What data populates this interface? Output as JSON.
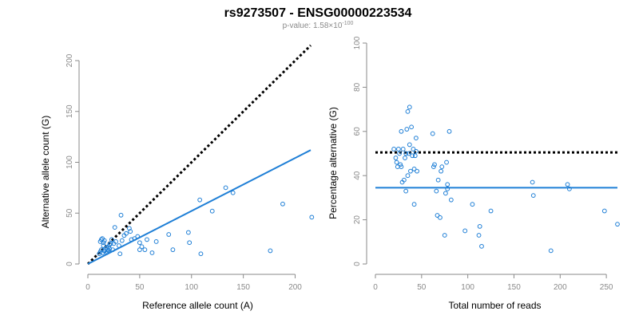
{
  "title": "rs9273507 - ENSG00000223534",
  "subtitle": {
    "prefix": "p-value: 1.58×10",
    "exponent": "-100"
  },
  "colors": {
    "points": "#1f7fd6",
    "fit_line": "#1f7fd6",
    "reference_line": "#000000",
    "axis": "#8a8a8a"
  },
  "chart_data": [
    {
      "type": "scatter",
      "xlabel": "Reference allele count (A)",
      "ylabel": "Alternative allele count (G)",
      "xlim": [
        0,
        215
      ],
      "ylim": [
        0,
        200
      ],
      "xticks": [
        0,
        50,
        100,
        150,
        200
      ],
      "yticks": [
        0,
        50,
        100,
        150,
        200
      ],
      "grid": false,
      "reference_line": {
        "style": "dotted",
        "x": [
          0,
          215
        ],
        "y": [
          0,
          215
        ]
      },
      "fit_line": {
        "style": "solid",
        "x": [
          0,
          215
        ],
        "y": [
          0,
          112
        ]
      },
      "points": [
        [
          11,
          10
        ],
        [
          12,
          12
        ],
        [
          13,
          14
        ],
        [
          14,
          11
        ],
        [
          15,
          18
        ],
        [
          12,
          22
        ],
        [
          13,
          24
        ],
        [
          14,
          25
        ],
        [
          15,
          21
        ],
        [
          16,
          13
        ],
        [
          17,
          15
        ],
        [
          18,
          16
        ],
        [
          19,
          14
        ],
        [
          20,
          17
        ],
        [
          21,
          19
        ],
        [
          22,
          20
        ],
        [
          23,
          24
        ],
        [
          16,
          23
        ],
        [
          18,
          11
        ],
        [
          19,
          12
        ],
        [
          20,
          13
        ],
        [
          21,
          15
        ],
        [
          24,
          14
        ],
        [
          25,
          20
        ],
        [
          26,
          36
        ],
        [
          27,
          22
        ],
        [
          30,
          18
        ],
        [
          31,
          10
        ],
        [
          32,
          48
        ],
        [
          33,
          23
        ],
        [
          35,
          28
        ],
        [
          37,
          30
        ],
        [
          40,
          35
        ],
        [
          41,
          32
        ],
        [
          42,
          24
        ],
        [
          45,
          25
        ],
        [
          48,
          27
        ],
        [
          50,
          21
        ],
        [
          50,
          14
        ],
        [
          52,
          17
        ],
        [
          55,
          14
        ],
        [
          57,
          24
        ],
        [
          62,
          11
        ],
        [
          66,
          22
        ],
        [
          78,
          29
        ],
        [
          82,
          14
        ],
        [
          97,
          31
        ],
        [
          98,
          21
        ],
        [
          108,
          63
        ],
        [
          109,
          10
        ],
        [
          120,
          52
        ],
        [
          133,
          75
        ],
        [
          140,
          70
        ],
        [
          176,
          13
        ],
        [
          188,
          59
        ],
        [
          216,
          46
        ]
      ]
    },
    {
      "type": "scatter",
      "xlabel": "Total number of reads",
      "ylabel": "Percentage alternative (G)",
      "xlim": [
        0,
        262
      ],
      "ylim": [
        0,
        100
      ],
      "xticks": [
        0,
        50,
        100,
        150,
        200,
        250
      ],
      "yticks": [
        0,
        20,
        40,
        60,
        80,
        100
      ],
      "grid": false,
      "reference_line": {
        "style": "dotted",
        "y": 50.5
      },
      "fit_line": {
        "style": "solid",
        "y": 34.5
      },
      "points": [
        [
          20,
          52
        ],
        [
          22,
          48
        ],
        [
          23,
          46
        ],
        [
          24,
          44
        ],
        [
          25,
          52
        ],
        [
          26,
          50
        ],
        [
          27,
          45
        ],
        [
          28,
          44
        ],
        [
          28,
          60
        ],
        [
          29,
          37
        ],
        [
          30,
          52
        ],
        [
          31,
          38
        ],
        [
          32,
          48
        ],
        [
          33,
          50
        ],
        [
          34,
          61
        ],
        [
          35,
          40
        ],
        [
          35,
          69
        ],
        [
          36,
          50
        ],
        [
          37,
          71
        ],
        [
          37,
          54
        ],
        [
          38,
          42
        ],
        [
          39,
          62
        ],
        [
          40,
          49
        ],
        [
          41,
          52
        ],
        [
          42,
          27
        ],
        [
          42,
          43
        ],
        [
          43,
          49
        ],
        [
          44,
          57
        ],
        [
          44,
          51
        ],
        [
          45,
          42
        ],
        [
          33,
          33
        ],
        [
          62,
          59
        ],
        [
          63,
          44
        ],
        [
          64,
          45
        ],
        [
          66,
          33
        ],
        [
          67,
          22
        ],
        [
          68,
          38
        ],
        [
          70,
          21
        ],
        [
          71,
          42
        ],
        [
          72,
          44
        ],
        [
          75,
          13
        ],
        [
          76,
          32
        ],
        [
          77,
          46
        ],
        [
          78,
          36
        ],
        [
          78,
          34
        ],
        [
          80,
          60
        ],
        [
          82,
          29
        ],
        [
          97,
          15
        ],
        [
          105,
          27
        ],
        [
          112,
          13
        ],
        [
          113,
          17
        ],
        [
          115,
          8
        ],
        [
          125,
          24
        ],
        [
          170,
          37
        ],
        [
          171,
          31
        ],
        [
          190,
          6
        ],
        [
          208,
          36
        ],
        [
          210,
          34
        ],
        [
          248,
          24
        ],
        [
          262,
          18
        ]
      ]
    }
  ]
}
